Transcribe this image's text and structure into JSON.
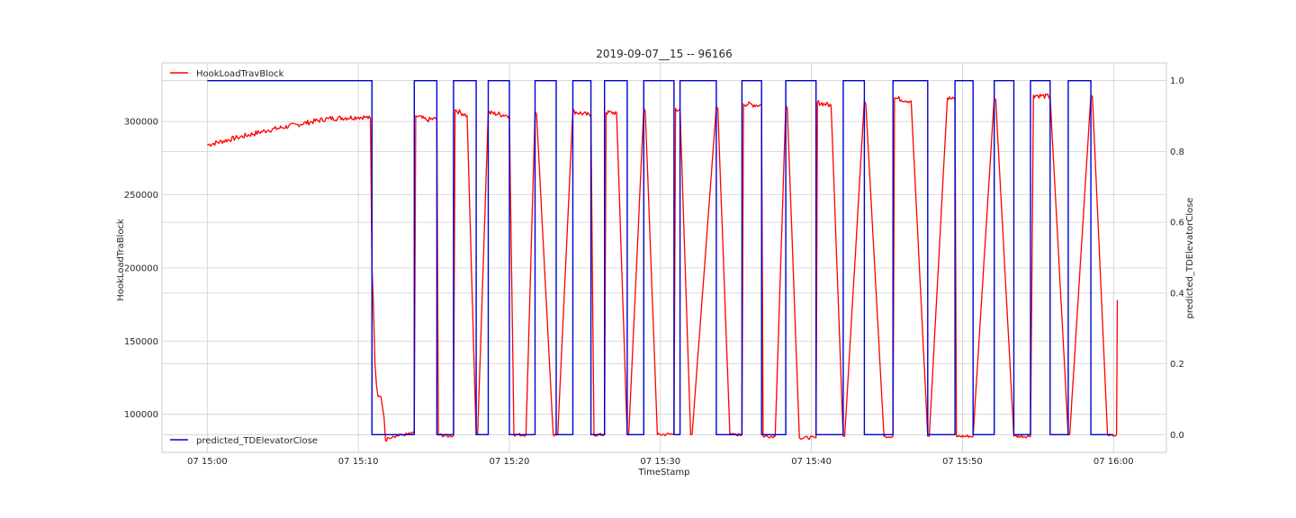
{
  "chart_data": {
    "type": "line",
    "title": "2019-09-07__15 -- 96166",
    "xlabel": "TimeStamp",
    "ylabel": "HookLoadTraBlock",
    "y2label": "predicted_TDElevatorClose",
    "x_ticks": [
      "07 15:00",
      "07 15:10",
      "07 15:20",
      "07 15:30",
      "07 15:40",
      "07 15:50",
      "07 16:00"
    ],
    "xlim_minutes": [
      -3,
      63.5
    ],
    "y_ticks": [
      100000,
      150000,
      200000,
      250000,
      300000
    ],
    "ylim": [
      74000,
      340000
    ],
    "y2_ticks": [
      "0.0",
      "0.2",
      "0.4",
      "0.6",
      "0.8",
      "1.0"
    ],
    "y2lim": [
      -0.05,
      1.05
    ],
    "grid": true,
    "legend": [
      {
        "name": "HookLoadTravBlock",
        "color": "#ff0000",
        "placement": "top-left"
      },
      {
        "name": "predicted_TDElevatorClose",
        "color": "#0000cc",
        "placement": "bottom-left"
      }
    ],
    "series": [
      {
        "name": "HookLoadTravBlock",
        "axis": "left",
        "color": "#ff0000",
        "x_minutes": [
          0,
          2,
          4,
          6,
          8,
          10,
          10.5,
          10.8,
          10.9,
          11.0,
          11.1,
          11.2,
          11.3,
          11.5,
          11.7,
          11.8,
          12.0,
          12.3,
          13.0,
          13.7,
          13.8,
          14.5,
          15.2,
          15.3,
          16.0,
          16.3,
          16.4,
          17.2,
          17.8,
          17.9,
          18.6,
          20.0,
          20.3,
          21.1,
          21.7,
          21.8,
          22.9,
          23.1,
          23.2,
          24.2,
          25.4,
          25.6,
          26.3,
          26.4,
          27.1,
          27.8,
          27.9,
          28.9,
          29.0,
          29.8,
          30.9,
          31.0,
          31.3,
          32.0,
          32.1,
          33.7,
          33.8,
          34.6,
          35.4,
          35.5,
          36.7,
          36.8,
          37.6,
          38.3,
          38.4,
          39.2,
          40.3,
          40.4,
          41.3,
          42.1,
          42.2,
          43.5,
          43.6,
          44.8,
          45.4,
          45.5,
          46.6,
          47.7,
          47.8,
          49.0,
          49.5,
          49.6,
          50.7,
          52.1,
          52.2,
          53.4,
          54.5,
          54.7,
          55.8,
          57.0,
          57.1,
          58.5,
          58.6,
          59.6,
          60.0,
          60.2,
          60.25
        ],
        "values": [
          284000,
          289000,
          294000,
          298000,
          302000,
          303000,
          303000,
          302000,
          200000,
          175000,
          135000,
          120000,
          112000,
          112000,
          98000,
          82000,
          84000,
          85000,
          86000,
          87000,
          304000,
          301000,
          302000,
          86000,
          85000,
          85500,
          308000,
          304000,
          86000,
          86500,
          306000,
          304000,
          86000,
          86000,
          307000,
          305000,
          86000,
          86000,
          86000,
          307000,
          304000,
          86000,
          86000,
          306000,
          306000,
          86000,
          86000,
          309000,
          307000,
          86000,
          86500,
          309000,
          308000,
          86000,
          86500,
          310000,
          309000,
          86000,
          86000,
          312000,
          311000,
          85000,
          85000,
          311000,
          309000,
          84000,
          84000,
          313000,
          311000,
          85000,
          85000,
          314000,
          312000,
          85000,
          85000,
          316000,
          314000,
          85000,
          85000,
          316000,
          315000,
          85000,
          85000,
          316000,
          315000,
          85000,
          85000,
          318000,
          317000,
          86000,
          86000,
          318000,
          317000,
          86000,
          85000,
          86000,
          178000
        ]
      },
      {
        "name": "predicted_TDElevatorClose",
        "axis": "right",
        "color": "#0000cc",
        "x_minutes": [
          0,
          10.9,
          10.9,
          13.7,
          13.7,
          15.2,
          15.2,
          16.3,
          16.3,
          17.8,
          17.8,
          18.6,
          18.6,
          20.0,
          20.0,
          21.7,
          21.7,
          23.1,
          23.1,
          24.2,
          24.2,
          25.4,
          25.4,
          26.3,
          26.3,
          27.8,
          27.8,
          28.9,
          28.9,
          30.9,
          30.9,
          31.3,
          31.3,
          33.7,
          33.7,
          35.4,
          35.4,
          36.7,
          36.7,
          38.3,
          38.3,
          40.3,
          40.3,
          42.1,
          42.1,
          43.5,
          43.5,
          45.4,
          45.4,
          47.7,
          47.7,
          49.5,
          49.5,
          50.7,
          50.7,
          52.1,
          52.1,
          53.4,
          53.4,
          54.5,
          54.5,
          55.8,
          55.8,
          57.0,
          57.0,
          58.5,
          58.5,
          60.0
        ],
        "values": [
          1,
          1,
          0,
          0,
          1,
          1,
          0,
          0,
          1,
          1,
          0,
          0,
          1,
          1,
          0,
          0,
          1,
          1,
          0,
          0,
          1,
          1,
          0,
          0,
          1,
          1,
          0,
          0,
          1,
          1,
          0,
          0,
          1,
          1,
          0,
          0,
          1,
          1,
          0,
          0,
          1,
          1,
          0,
          0,
          1,
          1,
          0,
          0,
          1,
          1,
          0,
          0,
          1,
          1,
          0,
          0,
          1,
          1,
          0,
          0,
          1,
          1,
          0,
          0,
          1,
          1,
          0,
          0
        ]
      }
    ]
  }
}
